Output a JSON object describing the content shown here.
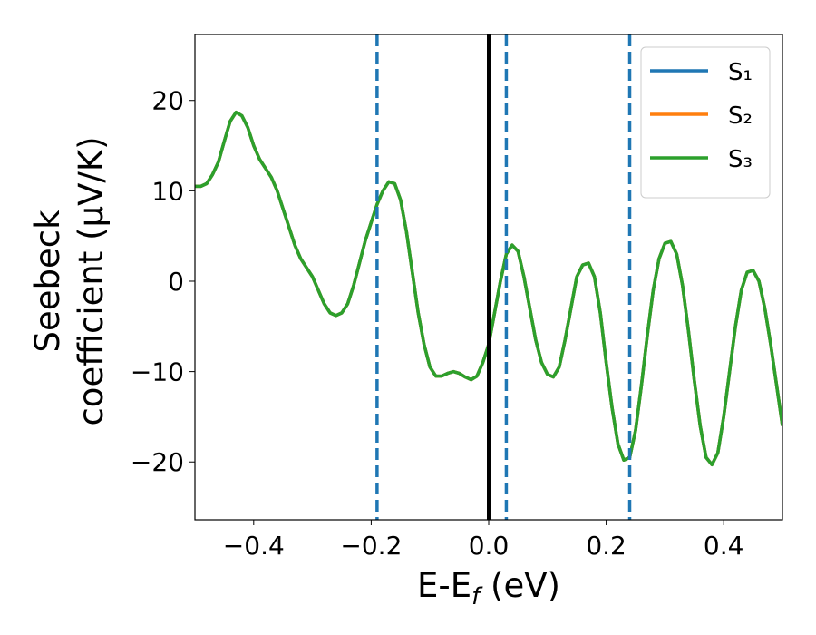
{
  "chart_data": {
    "type": "line",
    "xlabel": [
      "E-E",
      "f",
      " (eV)"
    ],
    "ylabel": [
      "Seebeck",
      "coefficient  (μV/K)"
    ],
    "xlim": [
      -0.5,
      0.5
    ],
    "ylim": [
      -26.4,
      27.3
    ],
    "xticks": [
      {
        "value": -0.4,
        "label": "−0.4"
      },
      {
        "value": -0.2,
        "label": "−0.2"
      },
      {
        "value": 0,
        "label": "0.0"
      },
      0.2,
      0.4
    ],
    "yticks": [
      {
        "value": -20,
        "label": "−20"
      },
      {
        "value": -10,
        "label": "−10"
      },
      0,
      10,
      20
    ],
    "grid": false,
    "legend": "upper right",
    "vlines": [
      {
        "x": 0,
        "color": "#000000",
        "style": "solid"
      },
      {
        "x": -0.19,
        "color": "#1f77b4",
        "style": "dashed"
      },
      {
        "x": 0.03,
        "color": "#1f77b4",
        "style": "dashed"
      },
      {
        "x": 0.24,
        "color": "#1f77b4",
        "style": "dashed"
      }
    ],
    "x": [
      -0.5,
      -0.49,
      -0.48,
      -0.47,
      -0.46,
      -0.45,
      -0.44,
      -0.43,
      -0.42,
      -0.41,
      -0.4,
      -0.39,
      -0.38,
      -0.37,
      -0.36,
      -0.35,
      -0.34,
      -0.33,
      -0.32,
      -0.31,
      -0.3,
      -0.29,
      -0.28,
      -0.27,
      -0.26,
      -0.25,
      -0.24,
      -0.23,
      -0.22,
      -0.21,
      -0.2,
      -0.19,
      -0.18,
      -0.17,
      -0.16,
      -0.15,
      -0.14,
      -0.13,
      -0.12,
      -0.11,
      -0.1,
      -0.09,
      -0.08,
      -0.07,
      -0.06,
      -0.05,
      -0.04,
      -0.03,
      -0.02,
      -0.01,
      0,
      0.01,
      0.02,
      0.03,
      0.04,
      0.05,
      0.06,
      0.07,
      0.08,
      0.09,
      0.1,
      0.11,
      0.12,
      0.13,
      0.14,
      0.15,
      0.16,
      0.17,
      0.18,
      0.19,
      0.2,
      0.21,
      0.22,
      0.23,
      0.24,
      0.25,
      0.26,
      0.27,
      0.28,
      0.29,
      0.3,
      0.31,
      0.32,
      0.33,
      0.34,
      0.35,
      0.36,
      0.37,
      0.38,
      0.39,
      0.4,
      0.41,
      0.42,
      0.43,
      0.44,
      0.45,
      0.46,
      0.47,
      0.48,
      0.49,
      0.5
    ],
    "series": [
      {
        "name": "S₁",
        "color": "#1f77b4",
        "values": [
          10.5,
          10.5,
          10.8,
          11.8,
          13.2,
          15.5,
          17.7,
          18.7,
          18.3,
          17,
          15,
          13.5,
          12.5,
          11.5,
          10,
          8,
          6,
          4,
          2.5,
          1.5,
          0.5,
          -1,
          -2.5,
          -3.5,
          -3.8,
          -3.5,
          -2.5,
          -0.5,
          2,
          4.5,
          6.5,
          8.5,
          10,
          11,
          10.8,
          9,
          5.5,
          1,
          -3.5,
          -7,
          -9.5,
          -10.5,
          -10.5,
          -10.2,
          -10,
          -10.2,
          -10.6,
          -10.9,
          -10.5,
          -9,
          -7,
          -3.5,
          0,
          3,
          4,
          3.3,
          0.5,
          -3,
          -6.5,
          -9,
          -10.3,
          -10.6,
          -9.5,
          -6.5,
          -3,
          0.5,
          1.8,
          2,
          0.5,
          -3.5,
          -9,
          -14,
          -18,
          -19.8,
          -19.5,
          -16.5,
          -11.5,
          -6,
          -1,
          2.5,
          4.2,
          4.4,
          3,
          -0.5,
          -5.5,
          -11,
          -16,
          -19.5,
          -20.3,
          -19,
          -15,
          -10,
          -5,
          -1,
          1,
          1.2,
          0,
          -3,
          -7,
          -11.5,
          -16
        ]
      },
      {
        "name": "S₂",
        "color": "#ff7f0e",
        "values": [
          10.5,
          10.5,
          10.8,
          11.8,
          13.2,
          15.5,
          17.7,
          18.7,
          18.3,
          17,
          15,
          13.5,
          12.5,
          11.5,
          10,
          8,
          6,
          4,
          2.5,
          1.5,
          0.5,
          -1,
          -2.5,
          -3.5,
          -3.8,
          -3.5,
          -2.5,
          -0.5,
          2,
          4.5,
          6.5,
          8.5,
          10,
          11,
          10.8,
          9,
          5.5,
          1,
          -3.5,
          -7,
          -9.5,
          -10.5,
          -10.5,
          -10.2,
          -10,
          -10.2,
          -10.6,
          -10.9,
          -10.5,
          -9,
          -7,
          -3.5,
          0,
          3,
          4,
          3.3,
          0.5,
          -3,
          -6.5,
          -9,
          -10.3,
          -10.6,
          -9.5,
          -6.5,
          -3,
          0.5,
          1.8,
          2,
          0.5,
          -3.5,
          -9,
          -14,
          -18,
          -19.8,
          -19.5,
          -16.5,
          -11.5,
          -6,
          -1,
          2.5,
          4.2,
          4.4,
          3,
          -0.5,
          -5.5,
          -11,
          -16,
          -19.5,
          -20.3,
          -19,
          -15,
          -10,
          -5,
          -1,
          1,
          1.2,
          0,
          -3,
          -7,
          -11.5,
          -16
        ]
      },
      {
        "name": "S₃",
        "color": "#2ca02c",
        "values": [
          10.5,
          10.5,
          10.8,
          11.8,
          13.2,
          15.5,
          17.7,
          18.7,
          18.3,
          17,
          15,
          13.5,
          12.5,
          11.5,
          10,
          8,
          6,
          4,
          2.5,
          1.5,
          0.5,
          -1,
          -2.5,
          -3.5,
          -3.8,
          -3.5,
          -2.5,
          -0.5,
          2,
          4.5,
          6.5,
          8.5,
          10,
          11,
          10.8,
          9,
          5.5,
          1,
          -3.5,
          -7,
          -9.5,
          -10.5,
          -10.5,
          -10.2,
          -10,
          -10.2,
          -10.6,
          -10.9,
          -10.5,
          -9,
          -7,
          -3.5,
          0,
          3,
          4,
          3.3,
          0.5,
          -3,
          -6.5,
          -9,
          -10.3,
          -10.6,
          -9.5,
          -6.5,
          -3,
          0.5,
          1.8,
          2,
          0.5,
          -3.5,
          -9,
          -14,
          -18,
          -19.8,
          -19.5,
          -16.5,
          -11.5,
          -6,
          -1,
          2.5,
          4.2,
          4.4,
          3,
          -0.5,
          -5.5,
          -11,
          -16,
          -19.5,
          -20.3,
          -19,
          -15,
          -10,
          -5,
          -1,
          1,
          1.2,
          0,
          -3,
          -7,
          -11.5,
          -16
        ]
      }
    ]
  }
}
